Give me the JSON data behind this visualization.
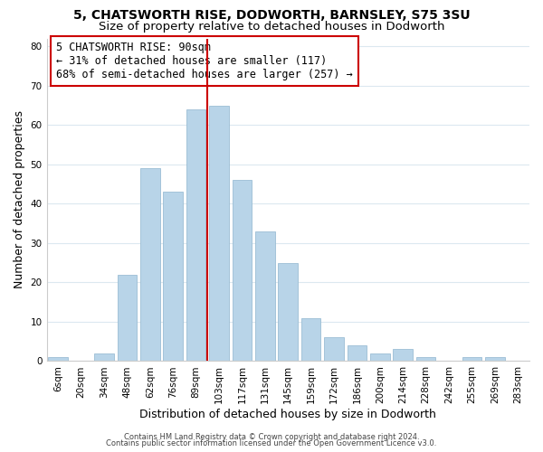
{
  "title1": "5, CHATSWORTH RISE, DODWORTH, BARNSLEY, S75 3SU",
  "title2": "Size of property relative to detached houses in Dodworth",
  "xlabel": "Distribution of detached houses by size in Dodworth",
  "ylabel": "Number of detached properties",
  "bar_labels": [
    "6sqm",
    "20sqm",
    "34sqm",
    "48sqm",
    "62sqm",
    "76sqm",
    "89sqm",
    "103sqm",
    "117sqm",
    "131sqm",
    "145sqm",
    "159sqm",
    "172sqm",
    "186sqm",
    "200sqm",
    "214sqm",
    "228sqm",
    "242sqm",
    "255sqm",
    "269sqm",
    "283sqm"
  ],
  "bar_heights": [
    1,
    0,
    2,
    22,
    49,
    43,
    64,
    65,
    46,
    33,
    25,
    11,
    6,
    4,
    2,
    3,
    1,
    0,
    1,
    1,
    0
  ],
  "bar_color": "#b8d4e8",
  "bar_edge_color": "#9bbdd4",
  "vline_x_index": 7,
  "vline_color": "#cc0000",
  "ylim": [
    0,
    82
  ],
  "yticks": [
    0,
    10,
    20,
    30,
    40,
    50,
    60,
    70,
    80
  ],
  "annotation_title": "5 CHATSWORTH RISE: 90sqm",
  "annotation_line1": "← 31% of detached houses are smaller (117)",
  "annotation_line2": "68% of semi-detached houses are larger (257) →",
  "footer1": "Contains HM Land Registry data © Crown copyright and database right 2024.",
  "footer2": "Contains public sector information licensed under the Open Government Licence v3.0.",
  "bg_color": "#ffffff",
  "grid_color": "#dce8f0",
  "title_fontsize": 10,
  "subtitle_fontsize": 9.5,
  "axis_label_fontsize": 9,
  "tick_fontsize": 7.5,
  "footer_fontsize": 6,
  "annotation_box_color": "#ffffff",
  "annotation_box_edge_color": "#cc0000",
  "annotation_fontsize": 8.5
}
